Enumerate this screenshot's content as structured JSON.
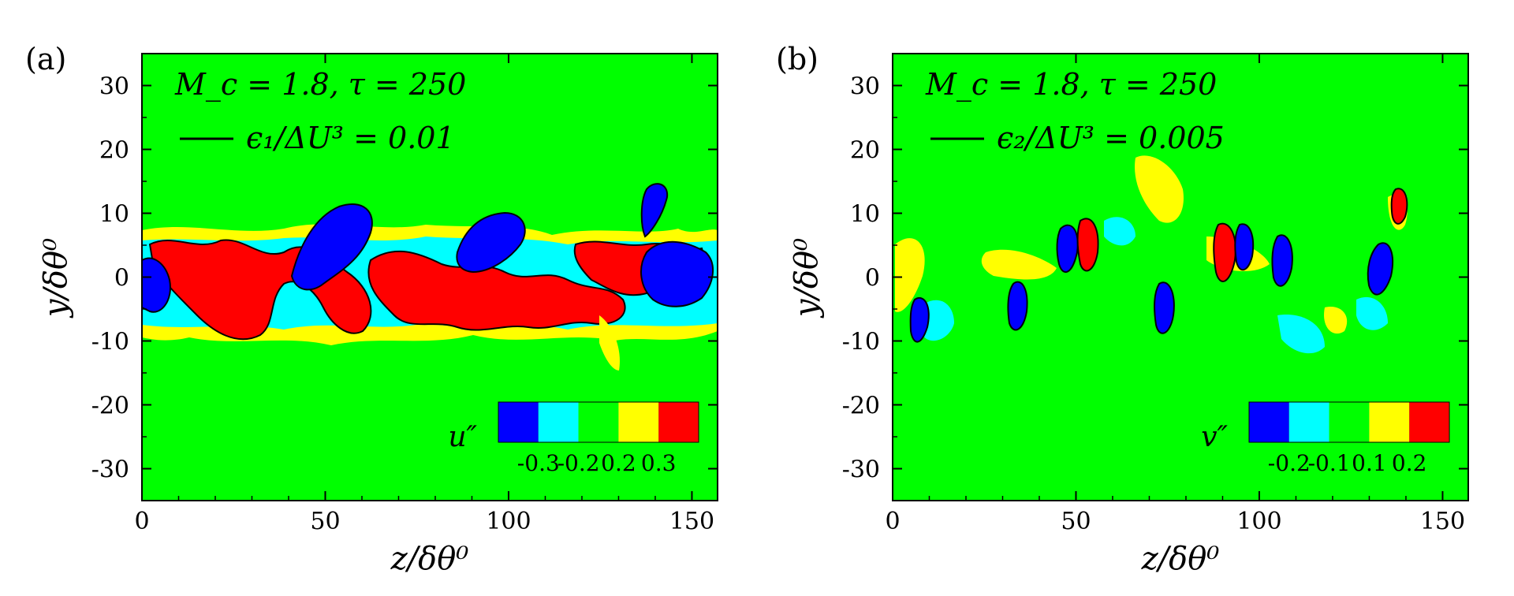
{
  "chart_data": [
    {
      "type": "heatmap",
      "panel_label": "(a)",
      "annotation": "M_c = 1.8, τ = 250",
      "legend_line_label": "ϵ₁/ΔU³ = 0.01",
      "xlabel": "z/δθ⁰",
      "ylabel": "y/δθ⁰",
      "xlim": [
        0,
        157
      ],
      "ylim": [
        -35,
        35
      ],
      "xticks": [
        0,
        50,
        100,
        150
      ],
      "yticks": [
        30,
        20,
        10,
        0,
        -10,
        -20,
        -30
      ],
      "colorbar": {
        "variable": "u″",
        "levels": [
          "-0.3",
          "-0.2",
          "0.2",
          "0.3"
        ],
        "colors": [
          "#0000ff",
          "#00ffff",
          "#00ff00",
          "#ffff00",
          "#ff0000"
        ]
      },
      "background_color": "#00ff00",
      "shear_layer_y_range": [
        -11,
        14
      ]
    },
    {
      "type": "heatmap",
      "panel_label": "(b)",
      "annotation": "M_c = 1.8, τ = 250",
      "legend_line_label": "ϵ₂/ΔU³ = 0.005",
      "xlabel": "z/δθ⁰",
      "ylabel": "y/δθ⁰",
      "xlim": [
        0,
        157
      ],
      "ylim": [
        -35,
        35
      ],
      "xticks": [
        0,
        50,
        100,
        150
      ],
      "yticks": [
        30,
        20,
        10,
        0,
        -10,
        -20,
        -30
      ],
      "colorbar": {
        "variable": "v″",
        "levels": [
          "-0.2",
          "-0.1",
          "0.1",
          "0.2"
        ],
        "colors": [
          "#0000ff",
          "#00ffff",
          "#00ff00",
          "#ffff00",
          "#ff0000"
        ]
      },
      "background_color": "#00ff00",
      "shear_layer_y_range": [
        -11,
        19
      ]
    }
  ]
}
